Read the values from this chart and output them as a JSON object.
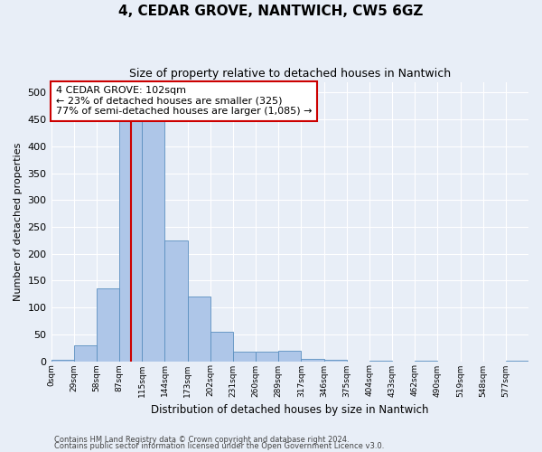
{
  "title": "4, CEDAR GROVE, NANTWICH, CW5 6GZ",
  "subtitle": "Size of property relative to detached houses in Nantwich",
  "xlabel": "Distribution of detached houses by size in Nantwich",
  "ylabel": "Number of detached properties",
  "bin_labels": [
    "0sqm",
    "29sqm",
    "58sqm",
    "87sqm",
    "115sqm",
    "144sqm",
    "173sqm",
    "202sqm",
    "231sqm",
    "260sqm",
    "289sqm",
    "317sqm",
    "346sqm",
    "375sqm",
    "404sqm",
    "433sqm",
    "462sqm",
    "490sqm",
    "519sqm",
    "548sqm",
    "577sqm"
  ],
  "bar_values": [
    2,
    30,
    135,
    460,
    455,
    225,
    120,
    55,
    18,
    18,
    20,
    5,
    2,
    0,
    1,
    0,
    1,
    0,
    0,
    0,
    1
  ],
  "bar_color": "#aec6e8",
  "bar_edgecolor": "#5a8fc0",
  "property_value": 102,
  "annotation_text": "4 CEDAR GROVE: 102sqm\n← 23% of detached houses are smaller (325)\n77% of semi-detached houses are larger (1,085) →",
  "annotation_box_color": "#ffffff",
  "annotation_box_edgecolor": "#cc0000",
  "ylim": [
    0,
    520
  ],
  "yticks": [
    0,
    50,
    100,
    150,
    200,
    250,
    300,
    350,
    400,
    450,
    500
  ],
  "footer_line1": "Contains HM Land Registry data © Crown copyright and database right 2024.",
  "footer_line2": "Contains public sector information licensed under the Open Government Licence v3.0.",
  "background_color": "#e8eef7",
  "grid_color": "#ffffff"
}
